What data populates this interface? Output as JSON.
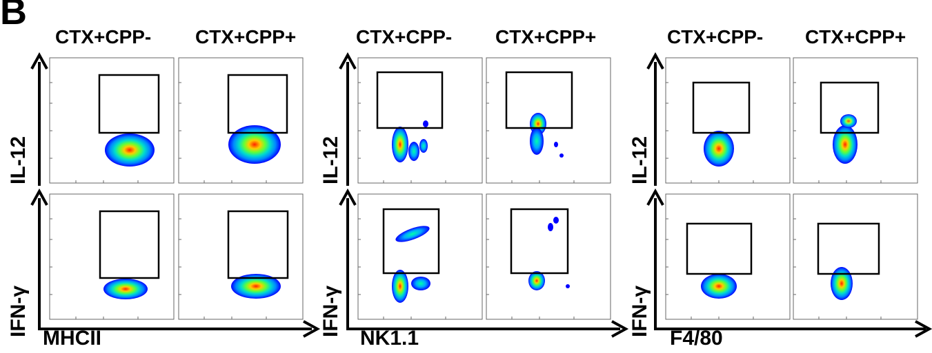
{
  "panel_letter": "B",
  "groups": [
    {
      "x_marker": "MHCII",
      "y_markers": [
        "IL-12",
        "IFN-γ"
      ],
      "columns": [
        "CTX+CPP-",
        "CTX+CPP+"
      ]
    },
    {
      "x_marker": "NK1.1",
      "y_markers": [
        "IL-12",
        "IFN-γ"
      ],
      "columns": [
        "CTX+CPP-",
        "CTX+CPP+"
      ]
    },
    {
      "x_marker": "F4/80",
      "y_markers": [
        "IL-12",
        "IFN-γ"
      ],
      "columns": [
        "CTX+CPP-",
        "CTX+CPP+"
      ]
    }
  ],
  "colors": {
    "axis": "#000000",
    "plot_border": "#555555",
    "density_ramp": [
      "#0000ff",
      "#00aaff",
      "#00ffaa",
      "#ffff00",
      "#ff2200"
    ]
  }
}
